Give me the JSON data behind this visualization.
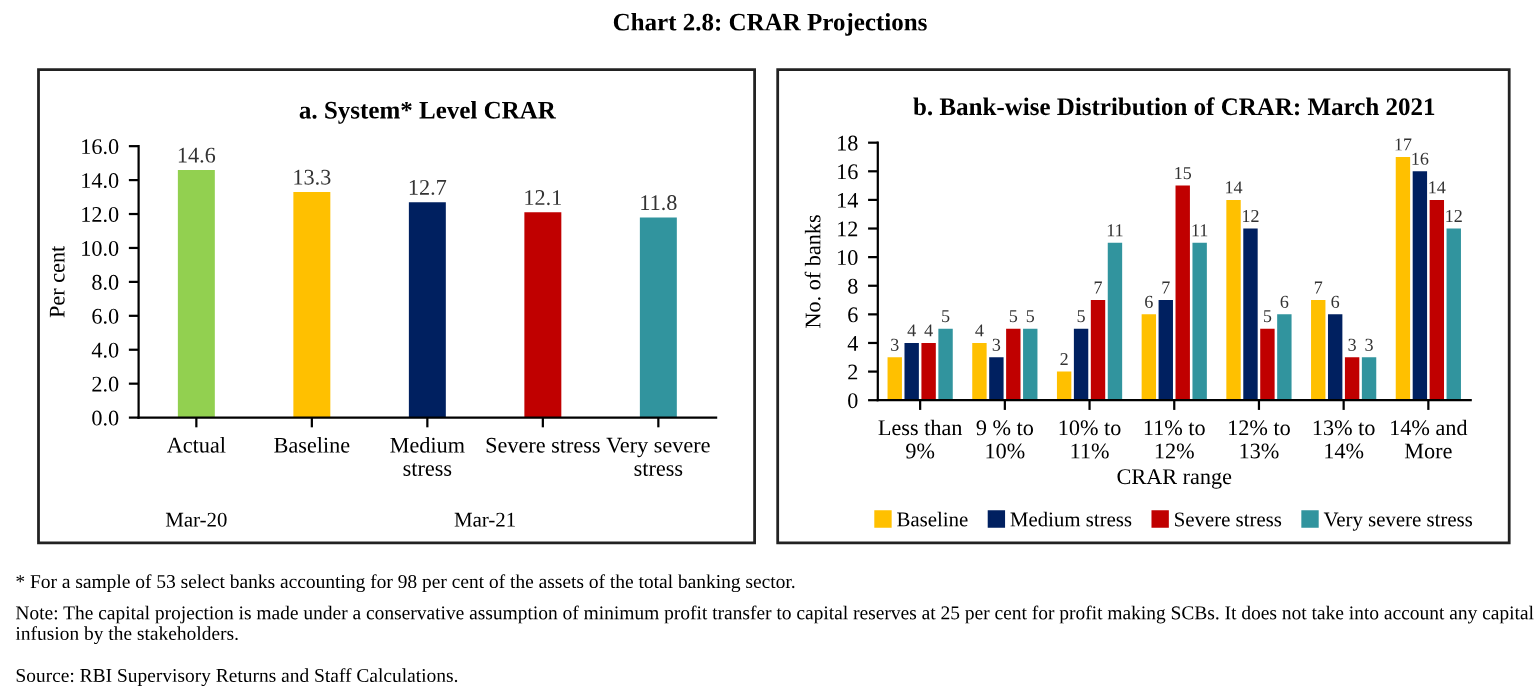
{
  "chart_data": [
    {
      "type": "bar",
      "title": "a. System* Level CRAR",
      "ylabel": "Per cent",
      "categories": [
        "Actual",
        "Baseline",
        "Medium\nstress",
        "Severe stress",
        "Very severe\nstress"
      ],
      "values": [
        14.6,
        13.3,
        12.7,
        12.1,
        11.8
      ],
      "colors": [
        "#92d050",
        "#ffc000",
        "#002060",
        "#c00000",
        "#31949e"
      ],
      "ylim": [
        0,
        16
      ],
      "yticks": [
        {
          "value": 0,
          "label": "0.0"
        },
        {
          "value": 2,
          "label": "2.0"
        },
        {
          "value": 4,
          "label": "4.0"
        },
        {
          "value": 6,
          "label": "6.0"
        },
        {
          "value": 8,
          "label": "8.0"
        },
        {
          "value": 10,
          "label": "10.0"
        },
        {
          "value": 12,
          "label": "12.0"
        },
        {
          "value": 14,
          "label": "14.0"
        },
        {
          "value": 16,
          "label": "16.0"
        }
      ],
      "data_labels": true,
      "grid": false,
      "legend": false,
      "annotations": [
        "Chart 2.8: CRAR Projections",
        "Mar-20",
        "Mar-21"
      ]
    },
    {
      "type": "bar",
      "title": "b. Bank-wise Distribution of CRAR: March 2021",
      "xlabel": "CRAR range",
      "ylabel": "No. of banks",
      "categories": [
        "Less than\n9%",
        "9 % to\n10%",
        "10% to\n11%",
        "11% to\n12%",
        "12% to\n13%",
        "13% to\n14%",
        "14% and\nMore"
      ],
      "series": [
        {
          "name": "Baseline",
          "color": "#ffc000",
          "values": [
            3,
            4,
            2,
            6,
            14,
            7,
            17
          ]
        },
        {
          "name": "Medium stress",
          "color": "#002060",
          "values": [
            4,
            3,
            5,
            7,
            12,
            6,
            16
          ]
        },
        {
          "name": "Severe stress",
          "color": "#c00000",
          "values": [
            4,
            5,
            7,
            15,
            5,
            3,
            14
          ]
        },
        {
          "name": "Very severe stress",
          "color": "#31949e",
          "values": [
            5,
            5,
            11,
            11,
            6,
            3,
            12
          ]
        }
      ],
      "ylim": [
        0,
        18
      ],
      "yticks": [
        0,
        2,
        4,
        6,
        8,
        10,
        12,
        14,
        16,
        18
      ],
      "data_labels": true,
      "grid": false,
      "legend": "bottom",
      "annotations": [
        "* For a sample of 53 select banks accounting for 98 per cent of the assets of the total banking sector.",
        "Note: The capital projection is made under a conservative assumption of minimum profit transfer to capital reserves at 25 per cent for profit making SCBs. It does not take into account any capital infusion by the stakeholders.",
        "Source: RBI Supervisory Returns and Staff Calculations."
      ]
    }
  ]
}
